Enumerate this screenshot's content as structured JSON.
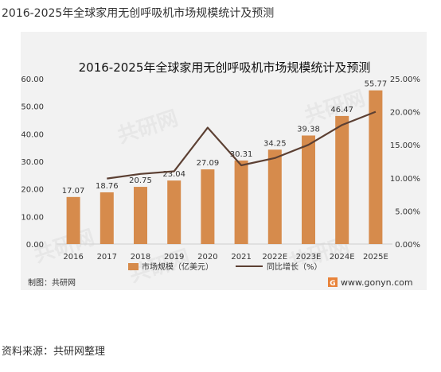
{
  "page": {
    "heading": "2016-2025年全球家用无创呼吸机市场规模统计及预测",
    "source": "资料来源：共研网整理"
  },
  "chart_data": {
    "type": "bar",
    "title": "2016-2025年全球家用无创呼吸机市场规模统计及预测",
    "categories": [
      "2016",
      "2017",
      "2018",
      "2019",
      "2020",
      "2021",
      "2022E",
      "2023E",
      "2024E",
      "2025E"
    ],
    "series": [
      {
        "name": "市场规模（亿美元）",
        "type": "bar",
        "axis": "left",
        "values": [
          17.07,
          18.76,
          20.75,
          23.04,
          27.09,
          30.31,
          34.25,
          39.38,
          46.47,
          55.77
        ],
        "labels": [
          "17.07",
          "18.76",
          "20.75",
          "23.04",
          "27.09",
          "30.31",
          "34.25",
          "39.38",
          "46.47",
          "55.77"
        ],
        "color": "#d68b4c"
      },
      {
        "name": "同比增长（%）",
        "type": "line",
        "axis": "right",
        "values": [
          null,
          9.9,
          10.6,
          11.0,
          17.6,
          11.9,
          13.0,
          15.0,
          18.0,
          20.0
        ],
        "color": "#5c4033"
      }
    ],
    "y_left": {
      "min": 0,
      "max": 60,
      "ticks": [
        "0.00",
        "10.00",
        "20.00",
        "30.00",
        "40.00",
        "50.00",
        "60.00"
      ]
    },
    "y_right": {
      "min": 0,
      "max": 25,
      "ticks": [
        "0.00%",
        "5.00%",
        "10.00%",
        "15.00%",
        "20.00%",
        "25.00%"
      ]
    },
    "grid": false,
    "legend_position": "bottom"
  },
  "footer": {
    "credit": "制图：共研网",
    "website": "www.gonyn.com"
  },
  "watermark": "共研网",
  "colors": {
    "bar": "#d68b4c",
    "line": "#5c4033",
    "background": "#f2f2f2",
    "logo": "#e8833a"
  }
}
